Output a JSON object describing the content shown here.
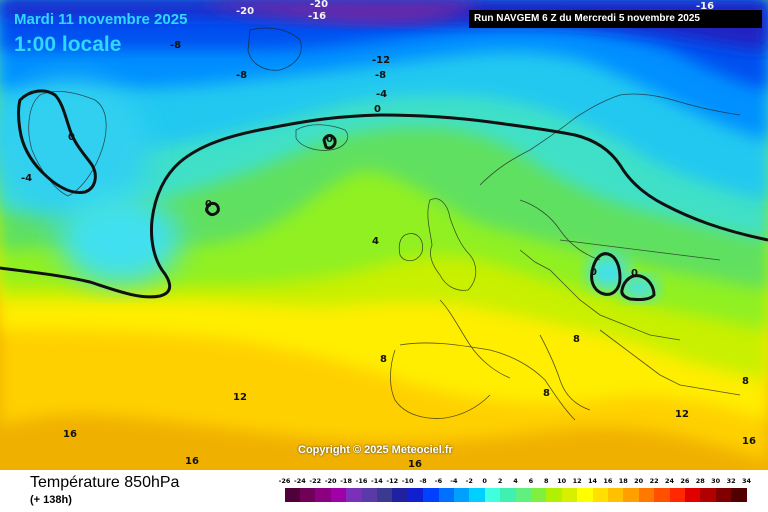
{
  "header": {
    "date": "Mardi 11 novembre 2025",
    "time": "1:00 locale",
    "run": "Run NAVGEM 6 Z du Mercredi 5 novembre 2025"
  },
  "map": {
    "copyright": "Copyright © 2025 Meteociel.fr",
    "contour_labels": {
      "m20a": "-20",
      "m16a": "-16",
      "m20b": "-20",
      "m16b": "-16",
      "m8a": "-8",
      "m8b": "-8",
      "m12": "-12",
      "m8c": "-8",
      "m4a": "-4",
      "z1": "0",
      "z2": "0",
      "z3": "0",
      "z4": "0",
      "z5": "0",
      "z6": "0",
      "z7": "0",
      "m4b": "-4",
      "p4": "4",
      "p8a": "8",
      "p8b": "8",
      "p8c": "8",
      "p8d": "8",
      "p12a": "12",
      "p12b": "12",
      "p16a": "16",
      "p16b": "16",
      "p16c": "16",
      "p16d": "16"
    },
    "zero_isotherm_color": "#111111"
  },
  "footer": {
    "parameter": "Température 850hPa",
    "lead": "(+ 138h)"
  },
  "legend": {
    "ticks": [
      "-26",
      "-24",
      "-22",
      "-20",
      "-18",
      "-16",
      "-14",
      "-12",
      "-10",
      "-8",
      "-6",
      "-4",
      "-2",
      "0",
      "2",
      "4",
      "6",
      "8",
      "10",
      "12",
      "14",
      "16",
      "18",
      "20",
      "22",
      "24",
      "26",
      "28",
      "30",
      "32",
      "34"
    ],
    "colors": [
      "#50003a",
      "#700058",
      "#8a0080",
      "#a000a8",
      "#7a30b8",
      "#5a3aa8",
      "#3a3a90",
      "#2020a0",
      "#1020d0",
      "#0040ff",
      "#0070ff",
      "#00a0ff",
      "#00d0ff",
      "#40ffe0",
      "#40f0b0",
      "#60f080",
      "#80f040",
      "#b0f000",
      "#d8f000",
      "#ffff00",
      "#ffe000",
      "#ffc000",
      "#ffa000",
      "#ff7800",
      "#ff5000",
      "#ff2800",
      "#e00000",
      "#b00000",
      "#800000",
      "#500000"
    ]
  }
}
